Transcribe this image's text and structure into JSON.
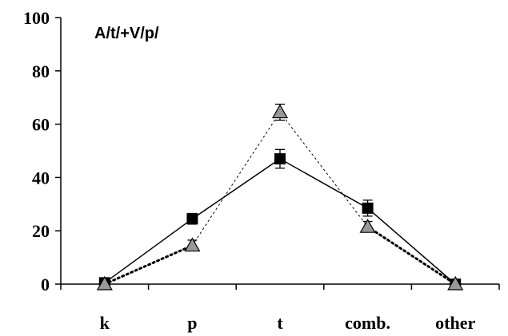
{
  "chart_data": {
    "type": "line",
    "title": "A/t/+V/p/",
    "xlabel": "",
    "ylabel": "",
    "categories": [
      "k",
      "p",
      "t",
      "comb.",
      "other"
    ],
    "ylim": [
      0,
      100
    ],
    "yticks": [
      0,
      20,
      40,
      60,
      80,
      100
    ],
    "grid": false,
    "legend": "none",
    "series": [
      {
        "marker": "square",
        "line_style": "solid",
        "color": "#000000",
        "values": [
          0.5,
          24.5,
          47,
          28.5,
          0
        ],
        "errors": [
          0,
          2,
          3.5,
          3,
          0
        ]
      },
      {
        "marker": "triangle",
        "line_style": "dotted",
        "color": "#000000",
        "marker_fill": "#999999",
        "values": [
          0,
          14.5,
          64.5,
          21.5,
          0
        ],
        "errors": [
          0,
          2,
          3,
          2,
          0
        ]
      }
    ]
  }
}
